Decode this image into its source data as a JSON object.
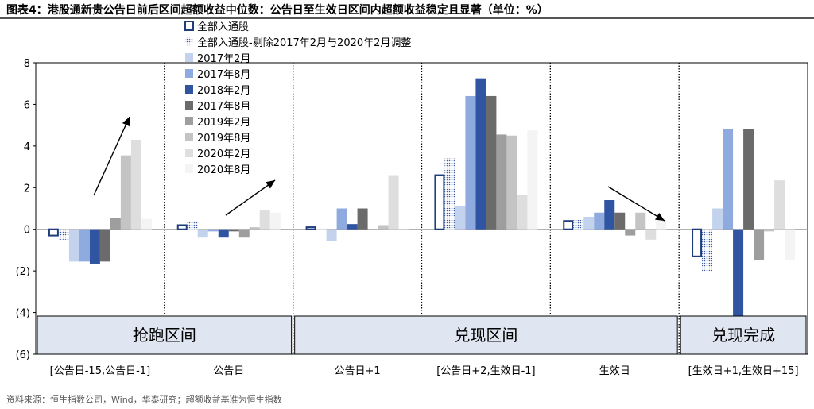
{
  "title": "图表4：港股通新贵公告日前后区间超额收益中位数：公告日至生效日区间内超额收益稳定且显著（单位：%）",
  "footer": "资料来源：恒生指数公司，Wind，华泰研究；超额收益基准为恒生指数",
  "colors": {
    "series": [
      "#ffffff",
      "#ffffff",
      "#c3d3ee",
      "#8eaadf",
      "#2f55a2",
      "#6b6b6b",
      "#9e9e9e",
      "#c4c4c4",
      "#dedede",
      "#f4f4f4"
    ],
    "outline": "#1f3d7a",
    "band_fill": "#dfe6f1"
  },
  "chart_data": {
    "type": "bar",
    "categories": [
      "[公告日-15,公告日-1]",
      "公告日",
      "公告日+1",
      "[公告日+2,生效日-1]",
      "生效日",
      "[生效日+1,生效日+15]"
    ],
    "series": [
      {
        "name": "全部入通股",
        "values": [
          -0.3,
          0.2,
          0.1,
          2.6,
          0.4,
          -1.3
        ]
      },
      {
        "name": "全部入通股-剔除2017年2月与2020年2月调整",
        "values": [
          -0.5,
          0.4,
          0.05,
          3.4,
          0.45,
          -2.0
        ]
      },
      {
        "name": "2017年2月",
        "values": [
          -1.55,
          -0.4,
          -0.55,
          1.1,
          0.6,
          1.0
        ]
      },
      {
        "name": "2017年8月",
        "values": [
          -1.55,
          -0.1,
          1.0,
          6.4,
          0.8,
          4.8
        ]
      },
      {
        "name": "2018年2月",
        "values": [
          -1.65,
          -0.4,
          0.25,
          7.25,
          1.4,
          -4.6
        ]
      },
      {
        "name": "2017年8月",
        "values": [
          -1.55,
          -0.1,
          1.0,
          6.4,
          0.8,
          4.8
        ]
      },
      {
        "name": "2019年2月",
        "values": [
          0.55,
          -0.4,
          0.0,
          4.55,
          -0.3,
          -1.5
        ]
      },
      {
        "name": "2019年8月",
        "values": [
          3.55,
          0.1,
          0.2,
          4.5,
          0.8,
          -0.1
        ]
      },
      {
        "name": "2020年2月",
        "values": [
          4.3,
          0.9,
          2.6,
          1.65,
          -0.5,
          2.35
        ]
      },
      {
        "name": "2020年8月",
        "values": [
          0.5,
          0.8,
          0.0,
          4.75,
          0.5,
          -1.5
        ]
      }
    ],
    "ylim": [
      -6,
      8
    ],
    "yticks": [
      8,
      6,
      4,
      2,
      0,
      -2,
      -4,
      -6
    ],
    "ytick_labels": [
      "8",
      "6",
      "4",
      "2",
      "0",
      "(2)",
      "(4)",
      "(6)"
    ],
    "bands": [
      {
        "label": "抢跑区间",
        "from_category": 0,
        "to_category": 1
      },
      {
        "label": "兑现区间",
        "from_category": 2,
        "to_category": 4
      },
      {
        "label": "兑现完成",
        "from_category": 5,
        "to_category": 5
      }
    ],
    "legend_position": "top-left"
  }
}
